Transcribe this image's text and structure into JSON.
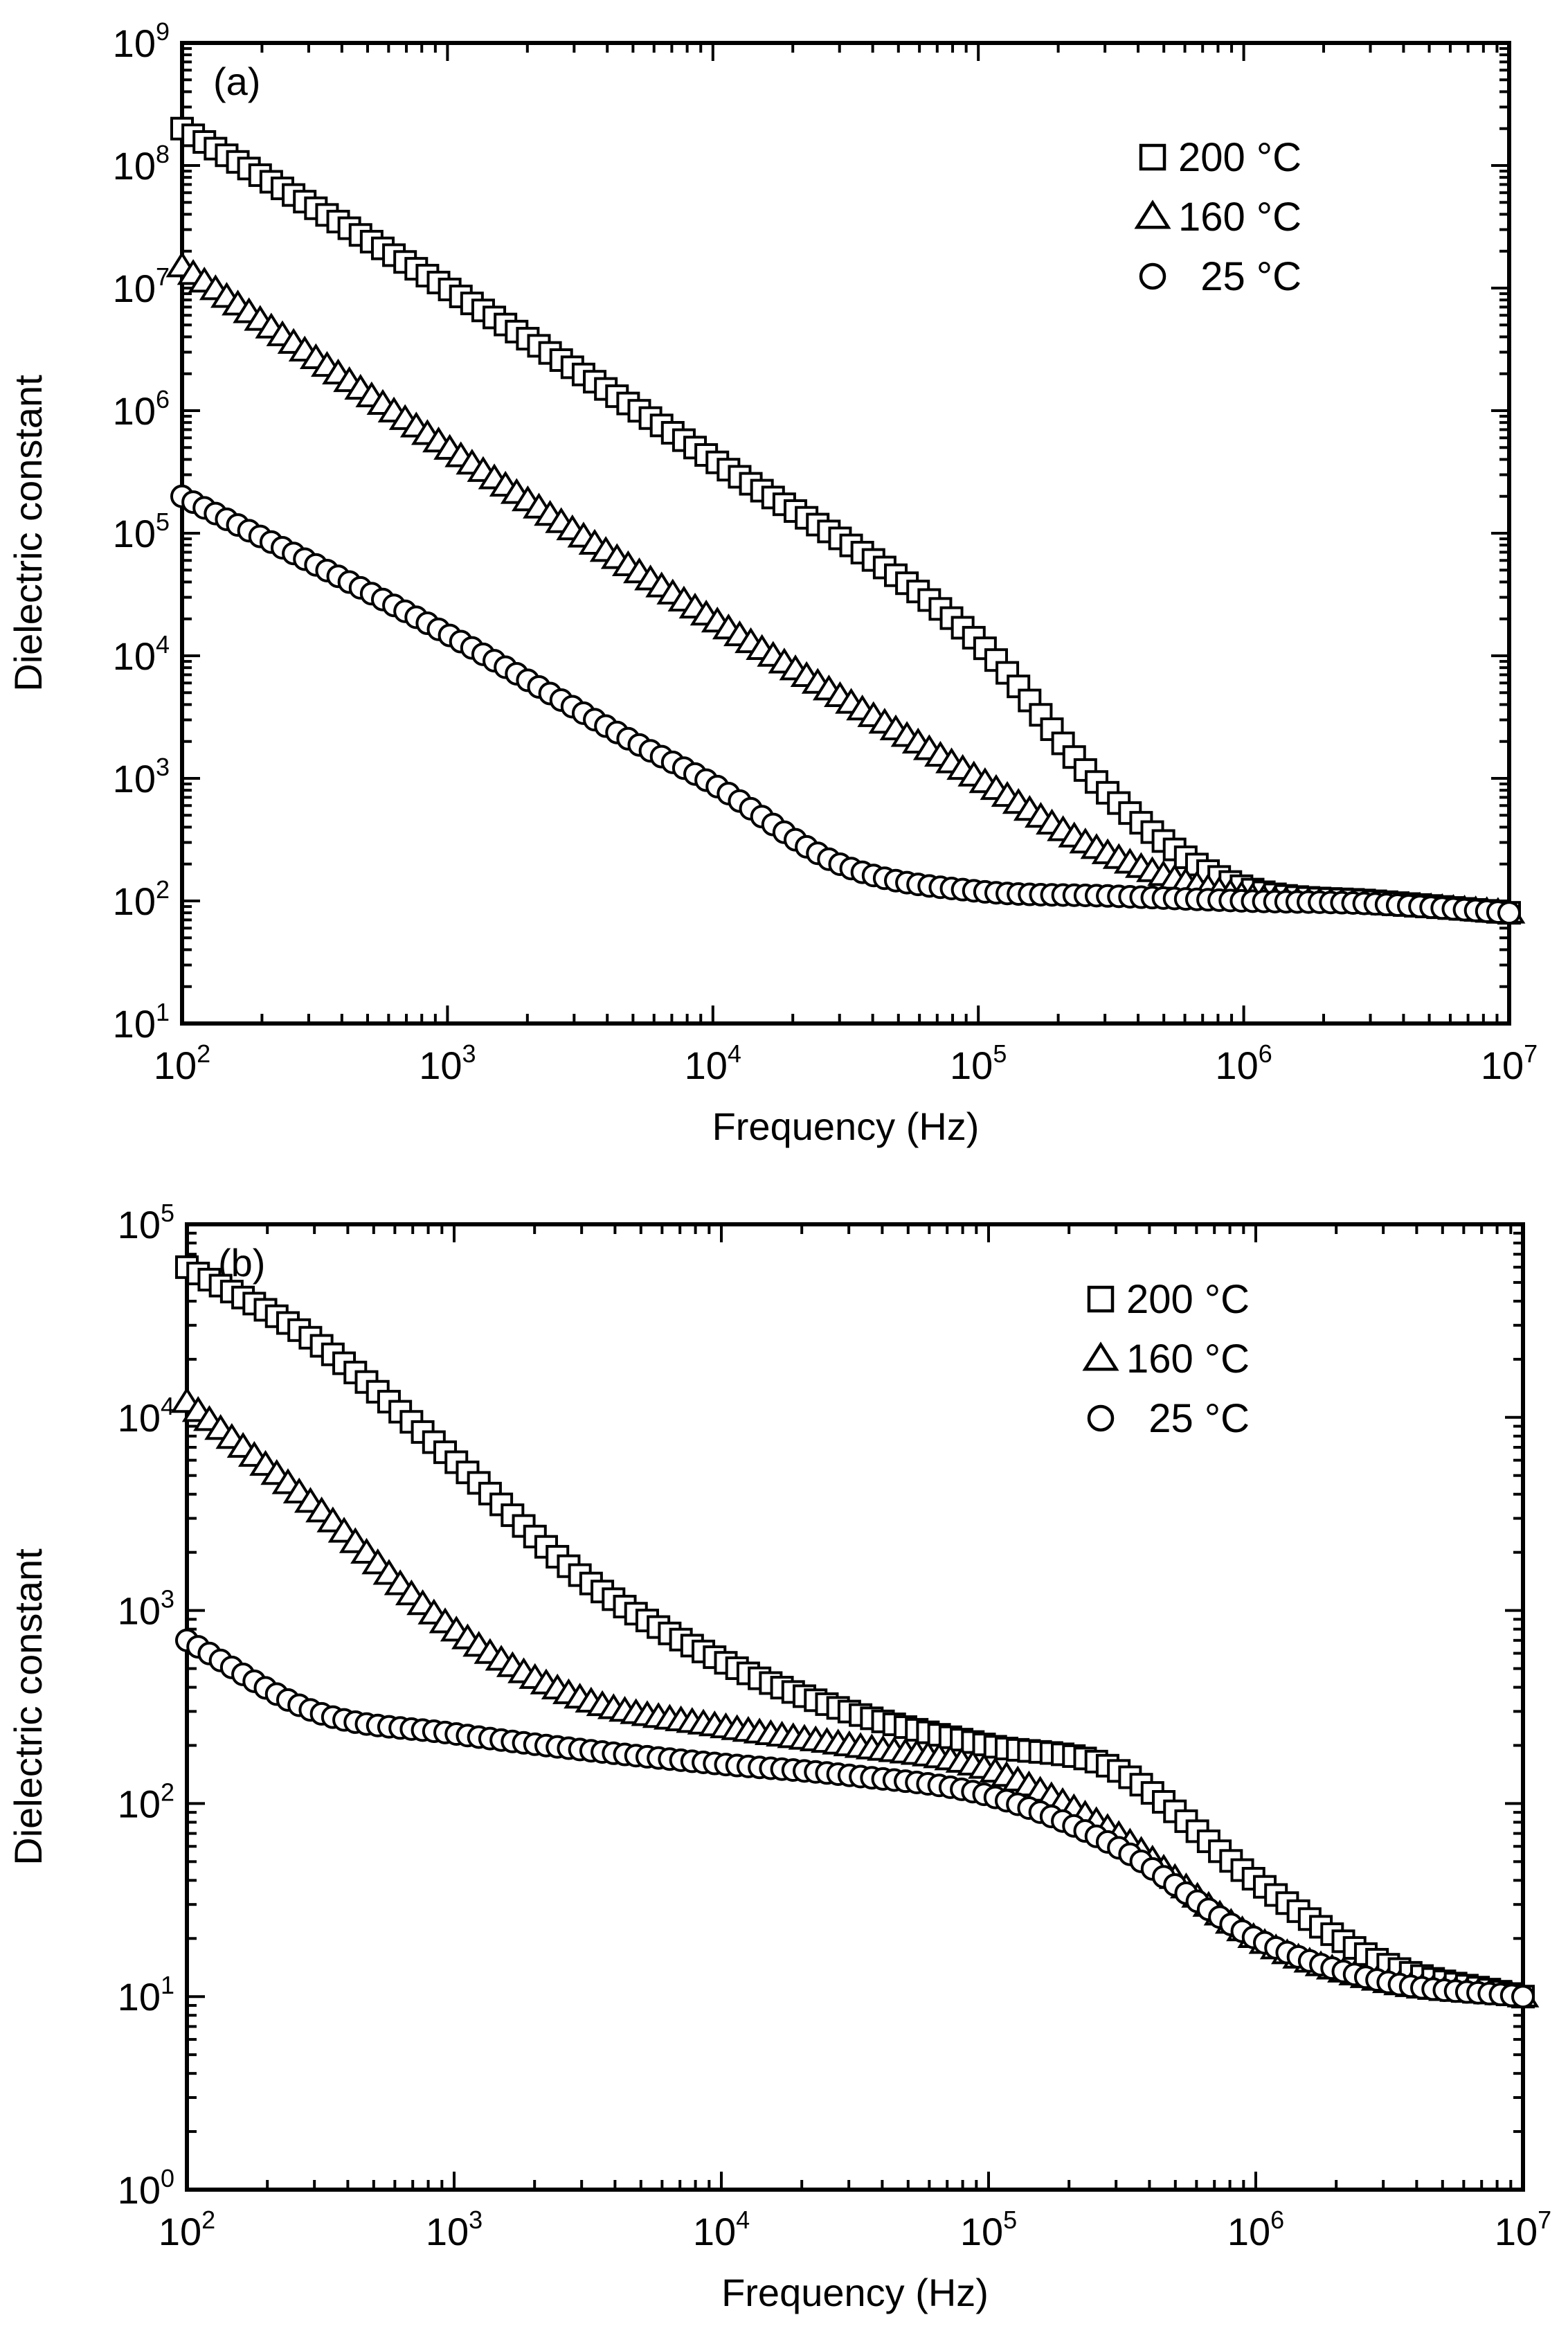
{
  "figure": {
    "colors": {
      "background": "#ffffff",
      "ink": "#000000",
      "marker_fill": "#ffffff"
    }
  },
  "chart_data": [
    {
      "type": "scatter",
      "panel_label": "(a)",
      "xlabel": "Frequency (Hz)",
      "ylabel": "Dielectric constant",
      "xscale": "log",
      "yscale": "log",
      "xlim": [
        100,
        10000000
      ],
      "ylim": [
        10,
        1000000000
      ],
      "x_ticks": [
        {
          "base": "10",
          "exp": "2"
        },
        {
          "base": "10",
          "exp": "3"
        },
        {
          "base": "10",
          "exp": "4"
        },
        {
          "base": "10",
          "exp": "5"
        },
        {
          "base": "10",
          "exp": "6"
        },
        {
          "base": "10",
          "exp": "7"
        }
      ],
      "y_ticks": [
        {
          "base": "10",
          "exp": "1"
        },
        {
          "base": "10",
          "exp": "2"
        },
        {
          "base": "10",
          "exp": "3"
        },
        {
          "base": "10",
          "exp": "4"
        },
        {
          "base": "10",
          "exp": "5"
        },
        {
          "base": "10",
          "exp": "6"
        },
        {
          "base": "10",
          "exp": "7"
        },
        {
          "base": "10",
          "exp": "8"
        },
        {
          "base": "10",
          "exp": "9"
        }
      ],
      "legend_position": "top-right",
      "grid": false,
      "series": [
        {
          "name": "200 °C",
          "marker": "square",
          "x": [
            100,
            1000,
            10000,
            100000,
            300000,
            1000000,
            3000000,
            10000000
          ],
          "values": [
            200000000,
            10000000,
            400000,
            13000,
            800,
            130,
            100,
            80
          ]
        },
        {
          "name": "160 °C",
          "marker": "triangle",
          "x": [
            100,
            1000,
            10000,
            100000,
            300000,
            1000000,
            3000000,
            10000000
          ],
          "values": [
            15000000,
            500000,
            20000,
            1000,
            250,
            110,
            95,
            80
          ]
        },
        {
          "name": "25 °C",
          "marker": "circle",
          "x": [
            100,
            1000,
            5000,
            10000,
            30000,
            100000,
            300000,
            1000000,
            3000000,
            10000000
          ],
          "values": [
            200000,
            15000,
            2000,
            900,
            200,
            120,
            110,
            100,
            95,
            80
          ]
        }
      ]
    },
    {
      "type": "scatter",
      "panel_label": "(b)",
      "xlabel": "Frequency (Hz)",
      "ylabel": "Dielectric constant",
      "xscale": "log",
      "yscale": "log",
      "xlim": [
        100,
        10000000
      ],
      "ylim": [
        1,
        100000
      ],
      "x_ticks": [
        {
          "base": "10",
          "exp": "2"
        },
        {
          "base": "10",
          "exp": "3"
        },
        {
          "base": "10",
          "exp": "4"
        },
        {
          "base": "10",
          "exp": "5"
        },
        {
          "base": "10",
          "exp": "6"
        },
        {
          "base": "10",
          "exp": "7"
        }
      ],
      "y_ticks": [
        {
          "base": "10",
          "exp": "0"
        },
        {
          "base": "10",
          "exp": "1"
        },
        {
          "base": "10",
          "exp": "2"
        },
        {
          "base": "10",
          "exp": "3"
        },
        {
          "base": "10",
          "exp": "4"
        },
        {
          "base": "10",
          "exp": "5"
        }
      ],
      "legend_position": "top-right",
      "grid": false,
      "series": [
        {
          "name": "200 °C",
          "marker": "square",
          "x": [
            100,
            300,
            1000,
            3000,
            10000,
            30000,
            100000,
            300000,
            1000000,
            3000000,
            10000000
          ],
          "values": [
            60000,
            25000,
            6000,
            1500,
            550,
            300,
            200,
            150,
            40,
            15,
            10
          ]
        },
        {
          "name": "160 °C",
          "marker": "triangle",
          "x": [
            100,
            300,
            1000,
            3000,
            10000,
            30000,
            100000,
            300000,
            1000000,
            3000000,
            10000000
          ],
          "values": [
            12000,
            3500,
            800,
            350,
            250,
            200,
            150,
            70,
            20,
            12,
            10
          ]
        },
        {
          "name": "25 °C",
          "marker": "circle",
          "x": [
            100,
            300,
            1000,
            3000,
            10000,
            30000,
            100000,
            300000,
            1000000,
            3000000,
            10000000
          ],
          "values": [
            700,
            300,
            230,
            190,
            160,
            140,
            110,
            60,
            20,
            12,
            10
          ]
        }
      ]
    }
  ]
}
